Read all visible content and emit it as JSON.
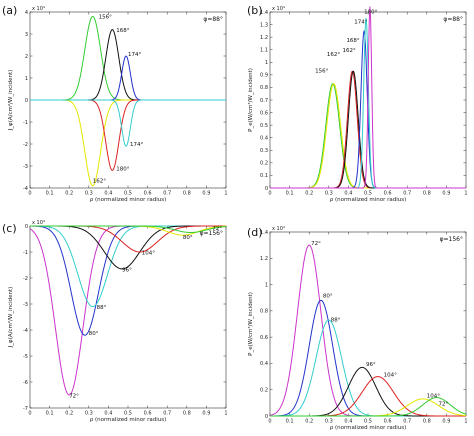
{
  "figure": {
    "panels": [
      {
        "panel_label": "(a)",
        "phi_label": "φ=88°",
        "exponent": "x 10⁴",
        "xlabel": "ρ (normalized minor radius)",
        "ylabel": "J_φ(A/cm²/W_incident)",
        "annotations": [
          "156°",
          "162°",
          "168°",
          "174°",
          "180°"
        ]
      },
      {
        "panel_label": "(b)",
        "phi_label": "φ=88°",
        "exponent": "x 10⁴",
        "xlabel": "ρ (normalized minor radius)",
        "ylabel": "P_e(W/cm³/W_incident)",
        "annotations": [
          "156°",
          "162°",
          "168°",
          "174°",
          "180°"
        ]
      },
      {
        "panel_label": "(c)",
        "phi_label": "φ=156°",
        "exponent": "x 10⁴",
        "xlabel": "ρ (normalized minor radius)",
        "ylabel": "J_φ(A/cm²/W_incident)",
        "annotations": [
          "72°",
          "80°",
          "88°",
          "96°",
          "104°"
        ]
      },
      {
        "panel_label": "(d)",
        "phi_label": "φ=156°",
        "exponent": "x 10⁴",
        "xlabel": "ρ (normalized minor radius)",
        "ylabel": "P_e(W/cm³/W_incident)",
        "annotations": [
          "72°",
          "80°",
          "88°",
          "96°",
          "104°"
        ]
      }
    ]
  },
  "chart_data": [
    {
      "type": "line",
      "xlim": [
        0,
        1
      ],
      "ylim": [
        -4,
        4
      ],
      "xticks": [
        0,
        0.1,
        0.2,
        0.3,
        0.4,
        0.5,
        0.6,
        0.7,
        0.8,
        0.9,
        1
      ],
      "yticks": [
        -4,
        -3,
        -2,
        -1,
        0,
        1,
        2,
        3,
        4
      ],
      "zero_line": true,
      "series": [
        {
          "name": "156°",
          "color": "#33cc33",
          "peaks": [
            {
              "center": 0.32,
              "width": 0.04,
              "amp": 3.8
            }
          ]
        },
        {
          "name": "162°",
          "color": "#e6e600",
          "peaks": [
            {
              "center": 0.32,
              "width": 0.04,
              "amp": -3.9
            }
          ]
        },
        {
          "name": "168°",
          "color": "#111111",
          "peaks": [
            {
              "center": 0.42,
              "width": 0.033,
              "amp": 3.2
            }
          ]
        },
        {
          "name": "180°",
          "color": "#dd2222",
          "peaks": [
            {
              "center": 0.42,
              "width": 0.033,
              "amp": -3.2
            }
          ]
        },
        {
          "name": "174°",
          "color": "#2233cc",
          "peaks": [
            {
              "center": 0.49,
              "width": 0.022,
              "amp": 2.0
            }
          ]
        },
        {
          "name": "174°",
          "color": "#33cccc",
          "peaks": [
            {
              "center": 0.49,
              "width": 0.022,
              "amp": -2.1
            }
          ]
        }
      ],
      "annotation_points": [
        {
          "label": "156°",
          "x": 0.35,
          "y": 3.7
        },
        {
          "label": "162°",
          "x": 0.32,
          "y": -3.75
        },
        {
          "label": "168°",
          "x": 0.44,
          "y": 3.1
        },
        {
          "label": "174°",
          "x": 0.5,
          "y": 2.0
        },
        {
          "label": "180°",
          "x": 0.44,
          "y": -3.2
        },
        {
          "label": "174°",
          "x": 0.51,
          "y": -2.1
        }
      ]
    },
    {
      "type": "line",
      "xlim": [
        0,
        1
      ],
      "ylim": [
        0,
        1.4
      ],
      "xticks": [
        0,
        0.1,
        0.2,
        0.3,
        0.4,
        0.5,
        0.6,
        0.7,
        0.8,
        0.9,
        1
      ],
      "yticks": [
        0,
        0.1,
        0.2,
        0.3,
        0.4,
        0.5,
        0.6,
        0.7,
        0.8,
        0.9,
        1,
        1.1,
        1.2,
        1.3,
        1.4
      ],
      "series": [
        {
          "name": "156°",
          "color": "#33cc33",
          "peaks": [
            {
              "center": 0.32,
              "width": 0.035,
              "amp": 0.83
            }
          ]
        },
        {
          "name": "156°",
          "color": "#e6e600",
          "peaks": [
            {
              "center": 0.325,
              "width": 0.035,
              "amp": 0.83
            }
          ]
        },
        {
          "name": "162°",
          "color": "#dd2222",
          "peaks": [
            {
              "center": 0.42,
              "width": 0.025,
              "amp": 0.93
            }
          ]
        },
        {
          "name": "162°",
          "color": "#111111",
          "peaks": [
            {
              "center": 0.425,
              "width": 0.025,
              "amp": 0.93
            }
          ]
        },
        {
          "name": "168°",
          "color": "#2233cc",
          "peaks": [
            {
              "center": 0.48,
              "width": 0.016,
              "amp": 1.25
            }
          ]
        },
        {
          "name": "174°",
          "color": "#33cccc",
          "peaks": [
            {
              "center": 0.49,
              "width": 0.012,
              "amp": 1.35
            }
          ]
        },
        {
          "name": "180°",
          "color": "#cc33cc",
          "peaks": [
            {
              "center": 0.51,
              "width": 0.009,
              "amp": 1.44
            }
          ]
        }
      ],
      "annotation_points": [
        {
          "label": "156°",
          "x": 0.23,
          "y": 0.92
        },
        {
          "label": "162°",
          "x": 0.29,
          "y": 1.05
        },
        {
          "label": "162°",
          "x": 0.37,
          "y": 1.08
        },
        {
          "label": "168°",
          "x": 0.39,
          "y": 1.16
        },
        {
          "label": "174°",
          "x": 0.43,
          "y": 1.31
        },
        {
          "label": "180°",
          "x": 0.48,
          "y": 1.39
        }
      ]
    },
    {
      "type": "line",
      "xlim": [
        0,
        1
      ],
      "ylim": [
        -7,
        0
      ],
      "xticks": [
        0,
        0.1,
        0.2,
        0.3,
        0.4,
        0.5,
        0.6,
        0.7,
        0.8,
        0.9,
        1
      ],
      "yticks": [
        -7,
        -6,
        -5,
        -4,
        -3,
        -2,
        -1,
        0
      ],
      "series": [
        {
          "name": "72°",
          "color": "#cc33cc",
          "peaks": [
            {
              "center": 0.2,
              "width": 0.07,
              "amp": -6.5
            }
          ]
        },
        {
          "name": "80°",
          "color": "#2233cc",
          "peaks": [
            {
              "center": 0.28,
              "width": 0.07,
              "amp": -4.2
            }
          ]
        },
        {
          "name": "88°",
          "color": "#33cccc",
          "peaks": [
            {
              "center": 0.32,
              "width": 0.075,
              "amp": -3.1
            }
          ]
        },
        {
          "name": "96°",
          "color": "#111111",
          "peaks": [
            {
              "center": 0.47,
              "width": 0.09,
              "amp": -1.65
            }
          ]
        },
        {
          "name": "104°",
          "color": "#dd2222",
          "peaks": [
            {
              "center": 0.56,
              "width": 0.09,
              "amp": -1.0
            }
          ]
        },
        {
          "name": "",
          "color": "#e6e600",
          "peaks": [
            {
              "center": 0.78,
              "width": 0.08,
              "amp": -0.35
            }
          ]
        },
        {
          "name": "",
          "color": "#33cc33",
          "peaks": [
            {
              "center": 0.82,
              "width": 0.08,
              "amp": -0.25
            }
          ]
        }
      ],
      "annotation_points": [
        {
          "label": "72°",
          "x": 0.2,
          "y": -6.6
        },
        {
          "label": "80°",
          "x": 0.3,
          "y": -4.2
        },
        {
          "label": "88°",
          "x": 0.34,
          "y": -3.2
        },
        {
          "label": "96°",
          "x": 0.47,
          "y": -1.75
        },
        {
          "label": "104°",
          "x": 0.57,
          "y": -1.1
        },
        {
          "label": "72°",
          "x": 0.93,
          "y": -0.15
        },
        {
          "label": "80°",
          "x": 0.78,
          "y": -0.5
        }
      ]
    },
    {
      "type": "line",
      "xlim": [
        0,
        1
      ],
      "ylim": [
        0,
        1.4
      ],
      "xticks": [
        0,
        0.1,
        0.2,
        0.3,
        0.4,
        0.5,
        0.6,
        0.7,
        0.8,
        0.9,
        1
      ],
      "yticks": [
        0,
        0.2,
        0.4,
        0.6,
        0.8,
        1,
        1.2,
        1.4
      ],
      "series": [
        {
          "name": "72°",
          "color": "#cc33cc",
          "peaks": [
            {
              "center": 0.2,
              "width": 0.06,
              "amp": 1.3
            }
          ]
        },
        {
          "name": "80°",
          "color": "#2233cc",
          "peaks": [
            {
              "center": 0.26,
              "width": 0.06,
              "amp": 0.88
            }
          ]
        },
        {
          "name": "88°",
          "color": "#33cccc",
          "peaks": [
            {
              "center": 0.3,
              "width": 0.065,
              "amp": 0.73
            }
          ]
        },
        {
          "name": "96°",
          "color": "#111111",
          "peaks": [
            {
              "center": 0.47,
              "width": 0.07,
              "amp": 0.37
            }
          ]
        },
        {
          "name": "104°",
          "color": "#dd2222",
          "peaks": [
            {
              "center": 0.55,
              "width": 0.08,
              "amp": 0.3
            }
          ]
        },
        {
          "name": "",
          "color": "#e6e600",
          "peaks": [
            {
              "center": 0.78,
              "width": 0.08,
              "amp": 0.13
            }
          ]
        },
        {
          "name": "",
          "color": "#33cc33",
          "peaks": [
            {
              "center": 0.85,
              "width": 0.07,
              "amp": 0.14
            }
          ]
        }
      ],
      "annotation_points": [
        {
          "label": "72°",
          "x": 0.21,
          "y": 1.3
        },
        {
          "label": "80°",
          "x": 0.27,
          "y": 0.9
        },
        {
          "label": "88°",
          "x": 0.31,
          "y": 0.72
        },
        {
          "label": "96°",
          "x": 0.49,
          "y": 0.38
        },
        {
          "label": "104°",
          "x": 0.58,
          "y": 0.3
        },
        {
          "label": "104°",
          "x": 0.8,
          "y": 0.14
        },
        {
          "label": "72°",
          "x": 0.86,
          "y": 0.08
        }
      ]
    }
  ]
}
